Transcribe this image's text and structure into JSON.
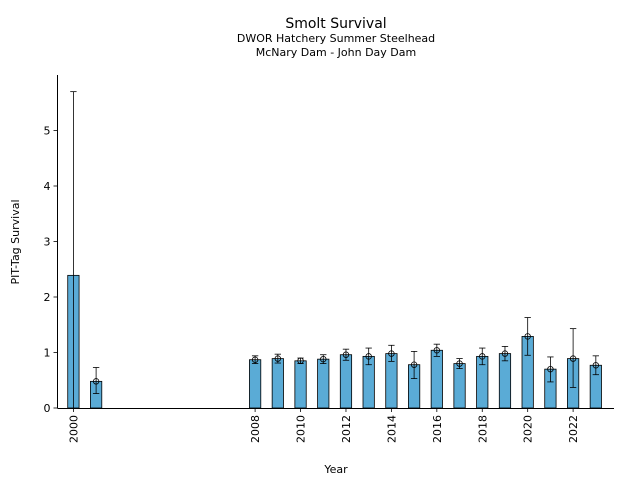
{
  "title": "Smolt Survival",
  "subtitle_line1": "DWOR Hatchery Summer Steelhead",
  "subtitle_line2": "McNary Dam - John Day Dam",
  "colors": {
    "bar_fill": "#5aabd6",
    "bar_edge": "#000000",
    "error_bar": "#000000",
    "background": "#ffffff"
  },
  "chart_data": {
    "type": "bar",
    "title": "Smolt Survival",
    "subtitle": [
      "DWOR Hatchery Summer Steelhead",
      "McNary Dam - John Day Dam"
    ],
    "xlabel": "Year",
    "ylabel": "PIT-Tag Survival",
    "xlim": [
      1999.3,
      2023.8
    ],
    "ylim": [
      0,
      6
    ],
    "x_ticks": [
      2000,
      2008,
      2010,
      2012,
      2014,
      2016,
      2018,
      2020,
      2022
    ],
    "y_ticks": [
      0,
      1,
      2,
      3,
      4,
      5
    ],
    "grid": false,
    "legend": "none",
    "points": [
      {
        "x": 2000,
        "y": 2.39,
        "err_low": 0.0,
        "err_high": 5.7,
        "marker": false
      },
      {
        "x": 2001,
        "y": 0.48,
        "err_low": 0.26,
        "err_high": 0.73,
        "marker": true
      },
      {
        "x": 2008,
        "y": 0.87,
        "err_low": 0.8,
        "err_high": 0.94,
        "marker": true
      },
      {
        "x": 2009,
        "y": 0.89,
        "err_low": 0.81,
        "err_high": 0.97,
        "marker": true
      },
      {
        "x": 2010,
        "y": 0.85,
        "err_low": 0.8,
        "err_high": 0.9,
        "marker": true
      },
      {
        "x": 2011,
        "y": 0.88,
        "err_low": 0.8,
        "err_high": 0.96,
        "marker": true
      },
      {
        "x": 2012,
        "y": 0.96,
        "err_low": 0.86,
        "err_high": 1.06,
        "marker": true
      },
      {
        "x": 2013,
        "y": 0.93,
        "err_low": 0.78,
        "err_high": 1.08,
        "marker": true
      },
      {
        "x": 2014,
        "y": 0.98,
        "err_low": 0.84,
        "err_high": 1.13,
        "marker": true
      },
      {
        "x": 2015,
        "y": 0.78,
        "err_low": 0.53,
        "err_high": 1.02,
        "marker": true
      },
      {
        "x": 2016,
        "y": 1.04,
        "err_low": 0.93,
        "err_high": 1.15,
        "marker": true
      },
      {
        "x": 2017,
        "y": 0.8,
        "err_low": 0.71,
        "err_high": 0.89,
        "marker": true
      },
      {
        "x": 2018,
        "y": 0.93,
        "err_low": 0.78,
        "err_high": 1.08,
        "marker": true
      },
      {
        "x": 2019,
        "y": 0.98,
        "err_low": 0.85,
        "err_high": 1.11,
        "marker": true
      },
      {
        "x": 2020,
        "y": 1.29,
        "err_low": 0.95,
        "err_high": 1.63,
        "marker": true
      },
      {
        "x": 2021,
        "y": 0.7,
        "err_low": 0.47,
        "err_high": 0.92,
        "marker": true
      },
      {
        "x": 2022,
        "y": 0.89,
        "err_low": 0.37,
        "err_high": 1.43,
        "marker": true
      },
      {
        "x": 2023,
        "y": 0.77,
        "err_low": 0.6,
        "err_high": 0.94,
        "marker": true
      }
    ]
  }
}
